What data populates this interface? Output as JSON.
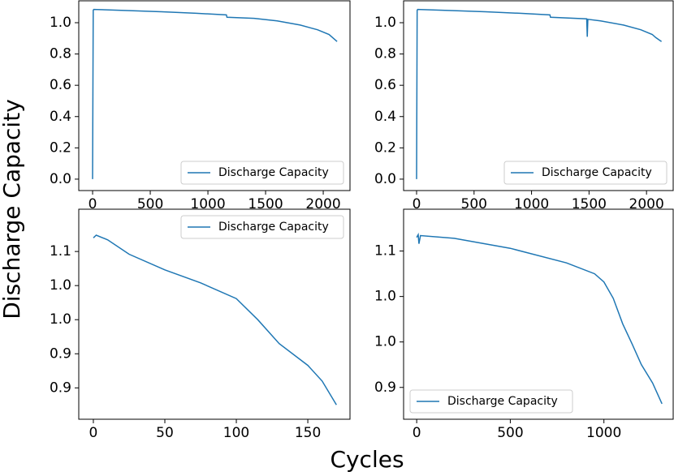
{
  "ylabel": "Discharge Capacity",
  "xlabel": "Cycles",
  "chart_data": [
    {
      "type": "line",
      "legend": "lower right",
      "xlim": [
        -120,
        2232
      ],
      "ylim": [
        -0.073,
        1.14
      ],
      "xticks": [
        0,
        500,
        1000,
        1500,
        2000
      ],
      "yticks": [
        {
          "value": 0,
          "label": "0.0"
        },
        0.2,
        0.4,
        0.6,
        0.8,
        {
          "value": 1,
          "label": "1.0"
        }
      ],
      "series": [
        {
          "name": "Discharge Capacity",
          "color": "#1f77b4",
          "x": [
            0,
            5,
            10,
            300,
            600,
            900,
            1160,
            1165,
            1400,
            1600,
            1800,
            1950,
            2050,
            2120
          ],
          "values": [
            0,
            1.08,
            1.085,
            1.078,
            1.07,
            1.06,
            1.05,
            1.035,
            1.028,
            1.012,
            0.985,
            0.955,
            0.925,
            0.88
          ]
        }
      ]
    },
    {
      "type": "line",
      "legend": "lower right",
      "xlim": [
        -113,
        2232
      ],
      "ylim": [
        -0.073,
        1.14
      ],
      "xticks": [
        0,
        500,
        1000,
        1500,
        2000
      ],
      "yticks": [
        {
          "value": 0,
          "label": "0.0"
        },
        0.2,
        0.4,
        0.6,
        0.8,
        {
          "value": 1,
          "label": "1.0"
        }
      ],
      "series": [
        {
          "name": "Discharge Capacity",
          "color": "#1f77b4",
          "x": [
            0,
            5,
            10,
            300,
            600,
            900,
            1160,
            1165,
            1480,
            1485,
            1490,
            1600,
            1800,
            1950,
            2050,
            2080,
            2130
          ],
          "values": [
            0,
            1.08,
            1.085,
            1.078,
            1.07,
            1.06,
            1.05,
            1.035,
            1.025,
            0.91,
            1.022,
            1.012,
            0.985,
            0.955,
            0.925,
            0.905,
            0.88
          ]
        }
      ]
    },
    {
      "type": "line",
      "legend": "upper right",
      "xlim": [
        -10.2,
        179.5
      ],
      "ylim": [
        0.854,
        1.162
      ],
      "xticks": [
        0,
        50,
        100,
        150
      ],
      "yticks": [
        {
          "value": 1.1,
          "label": "1.1"
        },
        {
          "value": 1.05,
          "label": "1.0"
        },
        {
          "value": 1.0,
          "label": "1.0"
        },
        {
          "value": 0.95,
          "label": "0.9"
        },
        {
          "value": 0.9,
          "label": "0.9"
        }
      ],
      "series": [
        {
          "name": "Discharge Capacity",
          "color": "#1f77b4",
          "x": [
            0,
            2,
            10,
            25,
            50,
            75,
            100,
            115,
            130,
            150,
            160,
            170
          ],
          "values": [
            1.12,
            1.124,
            1.117,
            1.096,
            1.073,
            1.054,
            1.031,
            1.0,
            0.965,
            0.933,
            0.91,
            0.875
          ]
        }
      ]
    },
    {
      "type": "line",
      "legend": "lower left",
      "xlim": [
        -70,
        1370
      ],
      "ylim": [
        0.915,
        1.146
      ],
      "xticks": [
        0,
        500,
        1000
      ],
      "yticks": [
        {
          "value": 1.1,
          "label": "1.1"
        },
        {
          "value": 1.05,
          "label": "1.0"
        },
        {
          "value": 1.0,
          "label": "1.0"
        },
        {
          "value": 0.95,
          "label": "0.9"
        }
      ],
      "series": [
        {
          "name": "Discharge Capacity",
          "color": "#1f77b4",
          "x": [
            0,
            8,
            12,
            20,
            200,
            500,
            800,
            950,
            1000,
            1050,
            1100,
            1150,
            1200,
            1260,
            1310
          ],
          "values": [
            1.115,
            1.118,
            1.108,
            1.117,
            1.114,
            1.103,
            1.087,
            1.075,
            1.066,
            1.048,
            1.02,
            0.998,
            0.975,
            0.955,
            0.932
          ]
        }
      ]
    }
  ]
}
